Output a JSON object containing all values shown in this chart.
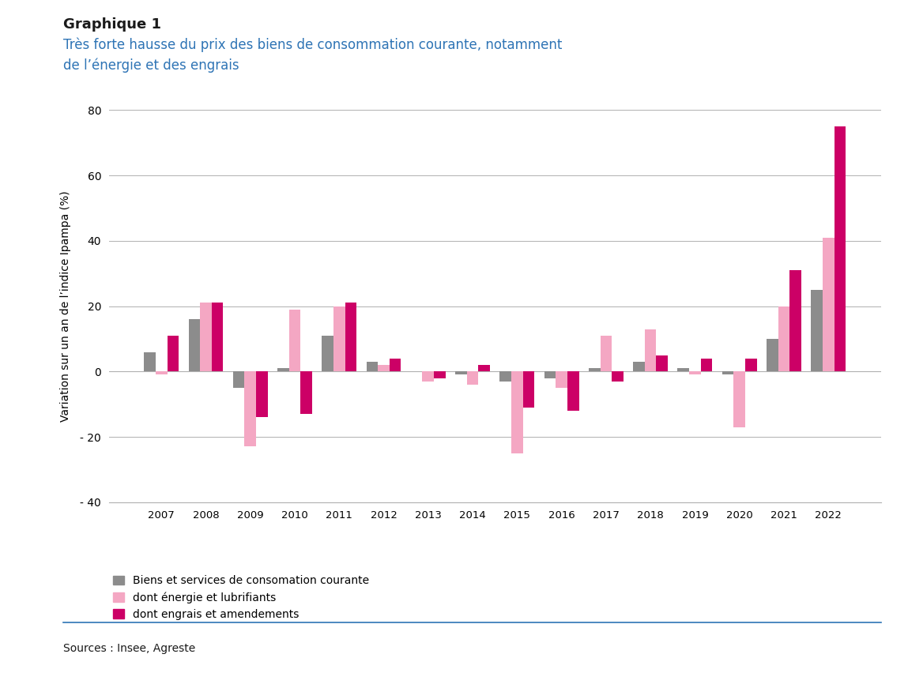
{
  "title_label": "Graphique 1",
  "title_main": "Très forte hausse du prix des biens de consommation courante, notamment\nde l’énergie et des engrais",
  "ylabel": "Variation sur un an de l’indice Ipampa (%)",
  "source": "Sources : Insee, Agreste",
  "years": [
    2007,
    2008,
    2009,
    2010,
    2011,
    2012,
    2013,
    2014,
    2015,
    2016,
    2017,
    2018,
    2019,
    2020,
    2021,
    2022
  ],
  "biens": [
    6,
    16,
    -5,
    1,
    11,
    3,
    0,
    -1,
    -3,
    -2,
    1,
    3,
    1,
    -1,
    10,
    25
  ],
  "energie": [
    -1,
    21,
    -23,
    19,
    20,
    2,
    -3,
    -4,
    -25,
    -5,
    11,
    13,
    -1,
    -17,
    20,
    41
  ],
  "engrais": [
    11,
    21,
    -14,
    -13,
    21,
    4,
    -2,
    2,
    -11,
    -12,
    -3,
    5,
    4,
    4,
    31,
    75
  ],
  "color_biens": "#8c8c8c",
  "color_energie": "#f4a7c3",
  "color_engrais": "#cc0066",
  "ylim_min": -40,
  "ylim_max": 80,
  "yticks": [
    -40,
    -20,
    0,
    20,
    40,
    60,
    80
  ],
  "legend_biens": "Biens et services de consomation courante",
  "legend_energie": "dont énergie et lubrifiants",
  "legend_engrais": "dont engrais et amendements",
  "title_label_color": "#1a1a1a",
  "title_main_color": "#2e74b5",
  "separator_color": "#2e74b5",
  "source_color": "#1a1a1a"
}
